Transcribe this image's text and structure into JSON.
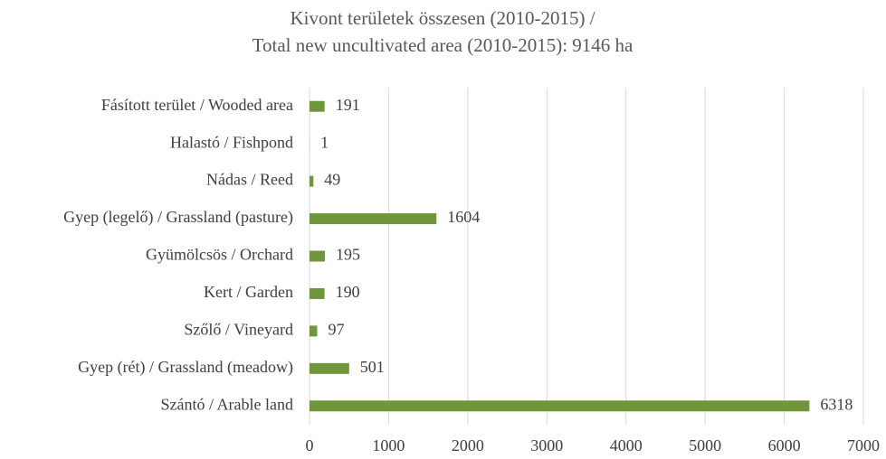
{
  "chart_data": {
    "type": "hbar",
    "title": [
      "Kivont területek összesen (2010-2015)  /",
      "Total new uncultivated area (2010-2015):  9146 ha"
    ],
    "categories": [
      "Fásított terület / Wooded area",
      "Halastó / Fishpond",
      "Nádas / Reed",
      "Gyep (legelő) / Grassland (pasture)",
      "Gyümölcsös / Orchard",
      "Kert / Garden",
      "Szőlő / Vineyard",
      "Gyep (rét) / Grassland (meadow)",
      "Szántó / Arable land"
    ],
    "values": [
      191,
      1,
      49,
      1604,
      195,
      190,
      97,
      501,
      6318
    ],
    "color": "#70963c",
    "xlim": [
      0,
      7000
    ],
    "xticks": [
      0,
      1000,
      2000,
      3000,
      4000,
      5000,
      6000,
      7000
    ],
    "grid": true
  }
}
